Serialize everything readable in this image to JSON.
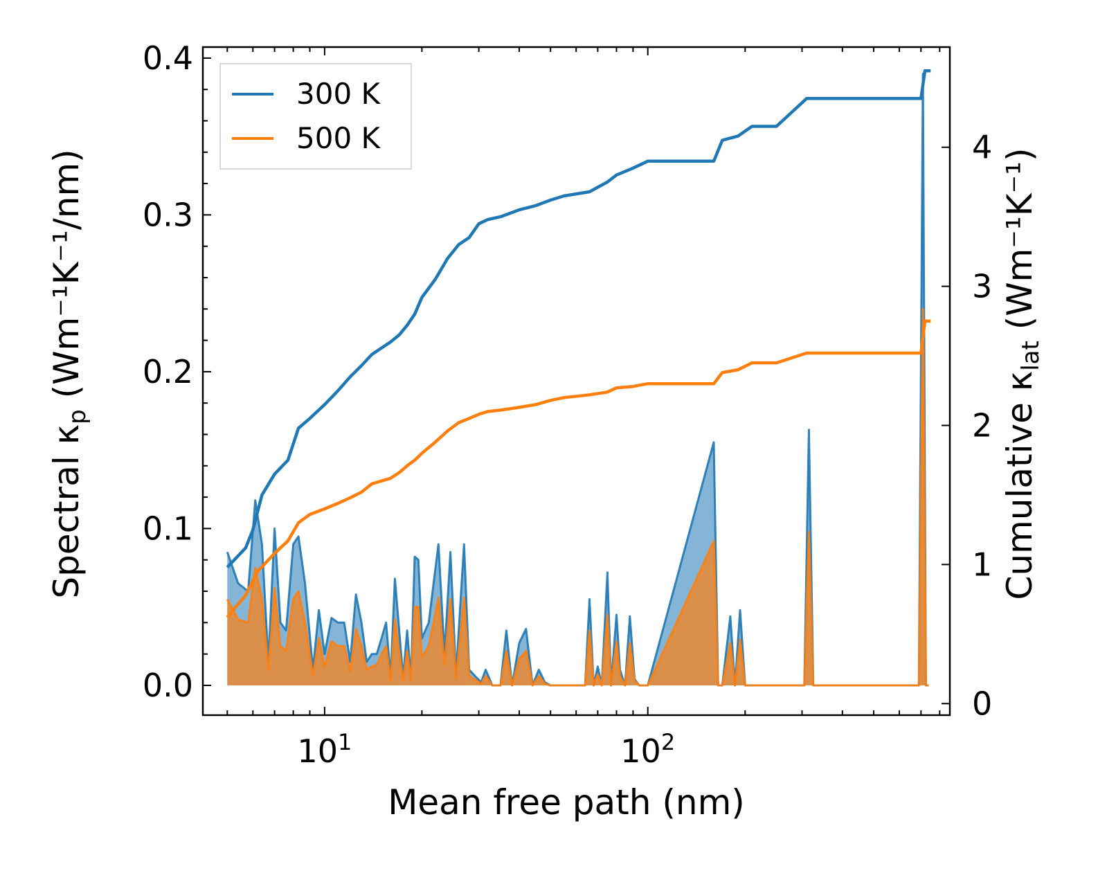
{
  "chart_data": {
    "type": "line",
    "xscale": "log",
    "xlim": [
      4.2,
      860
    ],
    "ylim_left": [
      -0.019,
      0.407
    ],
    "ylim_right": [
      -0.083,
      4.72
    ],
    "xlabel": "Mean free path (nm)",
    "ylabel_left": "Spectral κ",
    "ylabel_left_sub": "p",
    "ylabel_left_units": " (Wm⁻¹K⁻¹/nm)",
    "ylabel_right": "Cumulative κ",
    "ylabel_right_sub": "lat",
    "ylabel_right_units": " (Wm⁻¹K⁻¹)",
    "x_major_ticks": [
      {
        "value": 10,
        "base": "10",
        "exp": "1"
      },
      {
        "value": 100,
        "base": "10",
        "exp": "2"
      }
    ],
    "y_left_ticks": [
      {
        "value": 0.0,
        "label": "0.0"
      },
      {
        "value": 0.1,
        "label": "0.1"
      },
      {
        "value": 0.2,
        "label": "0.2"
      },
      {
        "value": 0.3,
        "label": "0.3"
      },
      {
        "value": 0.4,
        "label": "0.4"
      }
    ],
    "y_right_ticks": [
      {
        "value": 0,
        "label": "0"
      },
      {
        "value": 1,
        "label": "1"
      },
      {
        "value": 2,
        "label": "2"
      },
      {
        "value": 3,
        "label": "3"
      },
      {
        "value": 4,
        "label": "4"
      }
    ],
    "legend_position": "top-left",
    "series": [
      {
        "name": "300 K",
        "color": "#1f77b4",
        "cumulative": {
          "x": [
            5,
            5.7,
            6,
            6.4,
            7,
            7.7,
            8.3,
            9,
            10,
            11,
            12,
            13,
            14,
            16,
            17,
            18,
            19,
            20,
            22,
            24,
            26,
            28,
            30,
            32,
            35,
            40,
            45,
            50,
            55,
            66,
            75,
            80,
            90,
            100,
            160,
            170,
            190,
            210,
            250,
            310,
            700,
            720,
            750
          ],
          "y": [
            0.98,
            1.12,
            1.25,
            1.5,
            1.65,
            1.75,
            1.98,
            2.05,
            2.15,
            2.25,
            2.35,
            2.43,
            2.51,
            2.6,
            2.65,
            2.72,
            2.8,
            2.92,
            3.05,
            3.2,
            3.3,
            3.35,
            3.45,
            3.48,
            3.5,
            3.55,
            3.58,
            3.62,
            3.65,
            3.68,
            3.75,
            3.8,
            3.85,
            3.9,
            3.9,
            4.05,
            4.08,
            4.15,
            4.15,
            4.35,
            4.35,
            4.55,
            4.55
          ]
        },
        "spectral": {
          "x": [
            5,
            5.4,
            5.8,
            6.1,
            6.4,
            6.7,
            7.0,
            7.3,
            7.6,
            8.0,
            8.3,
            8.7,
            9.2,
            9.6,
            10.0,
            10.5,
            11.0,
            11.5,
            12.0,
            12.5,
            13.0,
            13.5,
            14.0,
            14.5,
            15.0,
            15.5,
            16.0,
            16.5,
            17.5,
            18.0,
            18.5,
            19.0,
            19.5,
            20.0,
            21.0,
            22.5,
            23.5,
            24.5,
            25.5,
            27.0,
            28.0,
            29.5,
            30.5,
            31.5,
            33.0,
            35.0,
            36.5,
            38.0,
            40.0,
            42.0,
            44.0,
            46.0,
            48.0,
            50.0,
            52.0,
            54.0,
            64.0,
            66.0,
            68.0,
            70.0,
            72.0,
            75.0,
            77.0,
            80.0,
            82.0,
            85.0,
            88.0,
            91.0,
            94.0,
            97.0,
            100.0,
            160.0,
            165.0,
            170.0,
            180.0,
            186.0,
            193.0,
            200.0,
            206.0,
            212.0,
            305.0,
            315.0,
            325.0,
            690.0,
            710.0,
            725.0,
            740.0
          ],
          "y": [
            0.085,
            0.065,
            0.06,
            0.118,
            0.09,
            0.015,
            0.1,
            0.04,
            0.035,
            0.09,
            0.095,
            0.065,
            0.01,
            0.048,
            0.02,
            0.043,
            0.04,
            0.04,
            0.015,
            0.058,
            0.04,
            0.015,
            0.02,
            0.02,
            0.03,
            0.04,
            0.005,
            0.068,
            0.005,
            0.035,
            0.004,
            0.082,
            0.08,
            0.03,
            0.04,
            0.09,
            0.02,
            0.085,
            0.007,
            0.09,
            0.01,
            0.005,
            0.002,
            0.01,
            0.0,
            0.0,
            0.035,
            0.0,
            0.027,
            0.036,
            0.0,
            0.01,
            0.002,
            0.0,
            0.0,
            0.0,
            0.0,
            0.055,
            0.0,
            0.012,
            0.0,
            0.072,
            0.0,
            0.045,
            0.01,
            0.0,
            0.044,
            0.004,
            0.0,
            0.0,
            0.0,
            0.155,
            0.0,
            0.0,
            0.044,
            0.0,
            0.048,
            0.0,
            0.0,
            0.0,
            0.0,
            0.163,
            0.0,
            0.0,
            0.39,
            0.0,
            0.0
          ]
        }
      },
      {
        "name": "500 K",
        "color": "#ff7f0e",
        "cumulative": {
          "x": [
            5,
            5.7,
            6.2,
            7.0,
            7.7,
            8.3,
            9,
            10,
            11,
            12,
            13,
            14,
            16,
            17,
            18,
            19,
            20,
            22,
            24,
            26,
            28,
            30,
            32,
            35,
            40,
            45,
            50,
            55,
            66,
            75,
            80,
            90,
            100,
            160,
            170,
            190,
            210,
            250,
            310,
            700,
            720,
            750
          ],
          "y": [
            0.62,
            0.78,
            0.95,
            1.08,
            1.17,
            1.3,
            1.36,
            1.4,
            1.44,
            1.48,
            1.52,
            1.58,
            1.62,
            1.66,
            1.71,
            1.75,
            1.8,
            1.88,
            1.96,
            2.02,
            2.05,
            2.08,
            2.1,
            2.11,
            2.13,
            2.15,
            2.18,
            2.2,
            2.22,
            2.24,
            2.27,
            2.28,
            2.3,
            2.3,
            2.38,
            2.4,
            2.45,
            2.45,
            2.52,
            2.52,
            2.75,
            2.75
          ]
        },
        "spectral": {
          "x": [
            5,
            5.4,
            5.8,
            6.1,
            6.4,
            6.7,
            7.0,
            7.3,
            7.6,
            8.0,
            8.3,
            8.7,
            9.2,
            9.6,
            10.0,
            10.5,
            11.0,
            11.5,
            12.0,
            12.5,
            13.0,
            13.5,
            14.0,
            14.5,
            15.0,
            15.5,
            16.0,
            16.5,
            17.5,
            18.0,
            18.5,
            19.0,
            19.5,
            20.0,
            21.0,
            22.5,
            23.5,
            24.5,
            25.5,
            27.0,
            28.0,
            29.5,
            30.5,
            31.5,
            33.0,
            35.0,
            36.5,
            38.0,
            40.0,
            42.0,
            44.0,
            46.0,
            48.0,
            50.0,
            52.0,
            54.0,
            64.0,
            66.0,
            68.0,
            70.0,
            72.0,
            75.0,
            77.0,
            80.0,
            82.0,
            85.0,
            88.0,
            91.0,
            94.0,
            97.0,
            100.0,
            160.0,
            165.0,
            170.0,
            180.0,
            186.0,
            193.0,
            200.0,
            206.0,
            212.0,
            305.0,
            315.0,
            325.0,
            690.0,
            710.0,
            725.0,
            740.0
          ],
          "y": [
            0.055,
            0.042,
            0.04,
            0.075,
            0.055,
            0.01,
            0.062,
            0.025,
            0.022,
            0.055,
            0.06,
            0.04,
            0.006,
            0.03,
            0.012,
            0.028,
            0.025,
            0.025,
            0.009,
            0.036,
            0.025,
            0.01,
            0.012,
            0.013,
            0.02,
            0.025,
            0.003,
            0.042,
            0.003,
            0.022,
            0.003,
            0.05,
            0.05,
            0.018,
            0.025,
            0.056,
            0.013,
            0.055,
            0.004,
            0.056,
            0.006,
            0.003,
            0.001,
            0.006,
            0.0,
            0.0,
            0.022,
            0.0,
            0.017,
            0.022,
            0.0,
            0.006,
            0.001,
            0.0,
            0.0,
            0.0,
            0.0,
            0.035,
            0.0,
            0.007,
            0.0,
            0.045,
            0.0,
            0.028,
            0.006,
            0.0,
            0.027,
            0.003,
            0.0,
            0.0,
            0.0,
            0.092,
            0.0,
            0.0,
            0.027,
            0.0,
            0.029,
            0.0,
            0.0,
            0.0,
            0.0,
            0.098,
            0.0,
            0.0,
            0.24,
            0.0,
            0.0
          ]
        }
      }
    ]
  }
}
